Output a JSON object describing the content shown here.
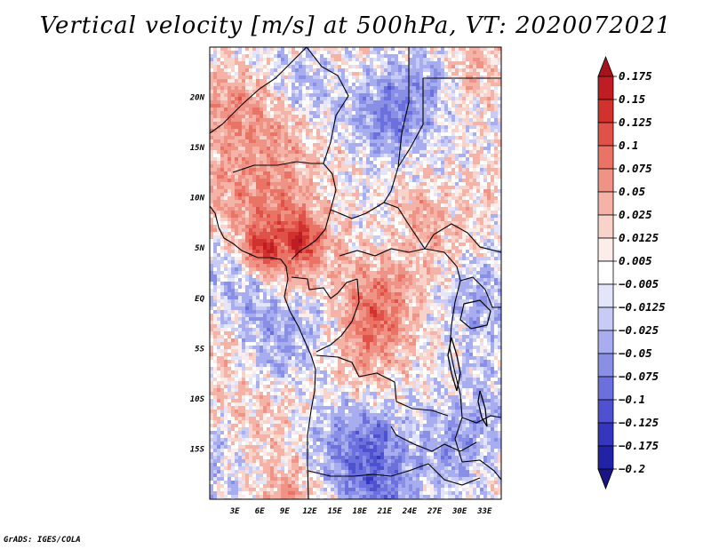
{
  "chart_data": {
    "type": "heatmap",
    "title": "Vertical velocity [m/s] at 500hPa, VT: 2020072021",
    "xlabel": "",
    "ylabel": "",
    "x_ticks": [
      "3E",
      "6E",
      "9E",
      "12E",
      "15E",
      "18E",
      "21E",
      "24E",
      "27E",
      "30E",
      "33E"
    ],
    "y_ticks": [
      "20N",
      "15N",
      "10N",
      "5N",
      "EQ",
      "5S",
      "10S",
      "15S"
    ],
    "xlim": [
      0,
      35
    ],
    "ylim": [
      -20,
      25
    ],
    "colorbar": {
      "labels": [
        "0.175",
        "0.15",
        "0.125",
        "0.1",
        "0.075",
        "0.05",
        "0.025",
        "0.0125",
        "0.005",
        "−0.005",
        "−0.0125",
        "−0.025",
        "−0.05",
        "−0.075",
        "−0.1",
        "−0.125",
        "−0.175",
        "−0.2"
      ],
      "colors": [
        "#a5141c",
        "#be1e23",
        "#d2322d",
        "#e0514a",
        "#e97466",
        "#ef9387",
        "#f5b3a8",
        "#f9d2ca",
        "#fcecea",
        "#ffffff",
        "#e3e5fb",
        "#c8cbf6",
        "#a8adef",
        "#8a8fe6",
        "#6b70dc",
        "#4e52cf",
        "#3436bd",
        "#2222a6",
        "#1a1484"
      ]
    }
  },
  "footer": "GrADS: IGES/COLA"
}
